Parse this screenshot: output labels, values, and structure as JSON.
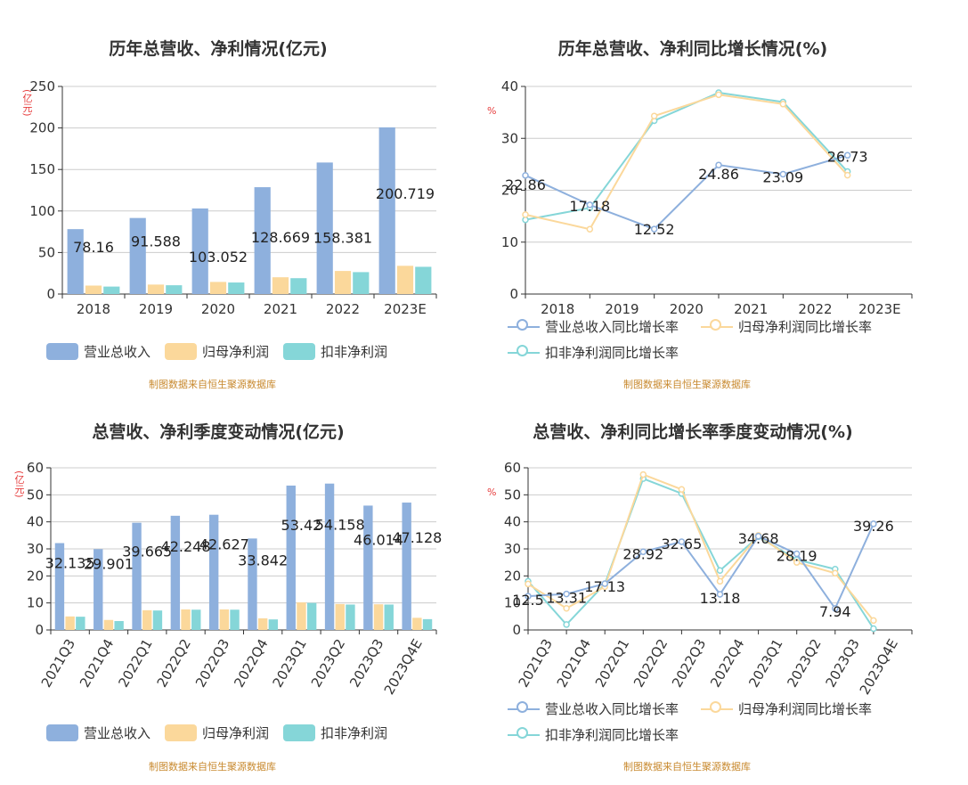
{
  "colors": {
    "revenue": "#8eb0dd",
    "net_profit": "#fbd89b",
    "deducted_profit": "#85d6d8",
    "axis": "#333333",
    "grid": "#cccccc",
    "source": "#c8892e",
    "unit": "#e63c3c"
  },
  "source_text": "制图数据来自恒生聚源数据库",
  "chart_data": [
    {
      "id": "annual-amount",
      "type": "bar",
      "title": "历年总营收、净利情况(亿元)",
      "ylabel": "(亿元)",
      "ylim": [
        0,
        250
      ],
      "yticks": [
        0,
        50,
        100,
        150,
        200,
        250
      ],
      "categories": [
        "2018",
        "2019",
        "2020",
        "2021",
        "2022",
        "2023E"
      ],
      "series": [
        {
          "name": "营业总收入",
          "values": [
            78.16,
            91.588,
            103.052,
            128.669,
            158.381,
            200.719
          ]
        },
        {
          "name": "归母净利润",
          "values": [
            10.2,
            11.4,
            14.6,
            20.2,
            27.8,
            34.0
          ]
        },
        {
          "name": "扣非净利润",
          "values": [
            9.0,
            10.6,
            13.9,
            19.1,
            26.4,
            32.8
          ]
        }
      ],
      "data_labels": [
        "78.16",
        "91.588",
        "103.052",
        "128.669",
        "158.381",
        "200.719"
      ],
      "legend": "bottom"
    },
    {
      "id": "annual-growth",
      "type": "line",
      "title": "历年总营收、净利同比增长情况(%)",
      "ylabel": "%",
      "ylim": [
        0,
        40
      ],
      "yticks": [
        0,
        10,
        20,
        30,
        40
      ],
      "categories": [
        "2018",
        "2019",
        "2020",
        "2021",
        "2022",
        "2023E"
      ],
      "series": [
        {
          "name": "营业总收入同比增长率",
          "values": [
            22.86,
            17.18,
            12.52,
            24.86,
            23.09,
            26.73
          ]
        },
        {
          "name": "归母净利润同比增长率",
          "values": [
            15.3,
            12.5,
            34.3,
            38.4,
            36.6,
            22.9
          ]
        },
        {
          "name": "扣非净利润同比增长率",
          "values": [
            14.3,
            16.6,
            33.4,
            38.8,
            37.0,
            23.6
          ]
        }
      ],
      "data_labels": [
        "22.86",
        "17.18",
        "12.52",
        "24.86",
        "23.09",
        "26.73"
      ],
      "legend": "bottom"
    },
    {
      "id": "quarterly-amount",
      "type": "bar",
      "title": "总营收、净利季度变动情况(亿元)",
      "ylabel": "(亿元)",
      "ylim": [
        0,
        60
      ],
      "yticks": [
        0,
        10,
        20,
        30,
        40,
        50,
        60
      ],
      "categories": [
        "2021Q3",
        "2021Q4",
        "2022Q1",
        "2022Q2",
        "2022Q3",
        "2022Q4",
        "2023Q1",
        "2023Q2",
        "2023Q3",
        "2023Q4E"
      ],
      "series": [
        {
          "name": "营业总收入",
          "values": [
            32.135,
            29.901,
            39.665,
            42.248,
            42.627,
            33.842,
            53.42,
            54.158,
            46.014,
            47.128
          ]
        },
        {
          "name": "归母净利润",
          "values": [
            5.0,
            3.7,
            7.3,
            7.6,
            7.6,
            4.3,
            10.2,
            9.6,
            9.5,
            4.5
          ]
        },
        {
          "name": "扣非净利润",
          "values": [
            4.9,
            3.3,
            7.2,
            7.5,
            7.5,
            3.9,
            10.0,
            9.4,
            9.4,
            4.0
          ]
        }
      ],
      "data_labels": [
        "32.135",
        "29.901",
        "39.665",
        "42.248",
        "42.627",
        "33.842",
        "53.42",
        "54.158",
        "46.014",
        "47.128"
      ],
      "legend": "bottom"
    },
    {
      "id": "quarterly-growth",
      "type": "line",
      "title": "总营收、净利同比增长率季度变动情况(%)",
      "ylabel": "%",
      "ylim": [
        0,
        60
      ],
      "yticks": [
        0,
        10,
        20,
        30,
        40,
        50,
        60
      ],
      "categories": [
        "2021Q3",
        "2021Q4",
        "2022Q1",
        "2022Q2",
        "2022Q3",
        "2022Q4",
        "2023Q1",
        "2023Q2",
        "2023Q3",
        "2023Q4E"
      ],
      "series": [
        {
          "name": "营业总收入同比增长率",
          "values": [
            12.5,
            13.31,
            17.13,
            28.92,
            32.65,
            13.18,
            34.68,
            28.19,
            7.94,
            39.26
          ]
        },
        {
          "name": "归母净利润同比增长率",
          "values": [
            17.0,
            8.0,
            16.0,
            57.5,
            52.0,
            18.0,
            35.0,
            25.0,
            21.0,
            3.5
          ]
        },
        {
          "name": "扣非净利润同比增长率",
          "values": [
            18.0,
            2.0,
            17.0,
            56.0,
            50.5,
            22.0,
            34.5,
            26.0,
            22.5,
            0.5
          ]
        }
      ],
      "data_labels": [
        "12.5",
        "13.31",
        "17.13",
        "28.92",
        "32.65",
        "13.18",
        "34.68",
        "28.19",
        "7.94",
        "39.26"
      ],
      "legend": "bottom"
    }
  ]
}
